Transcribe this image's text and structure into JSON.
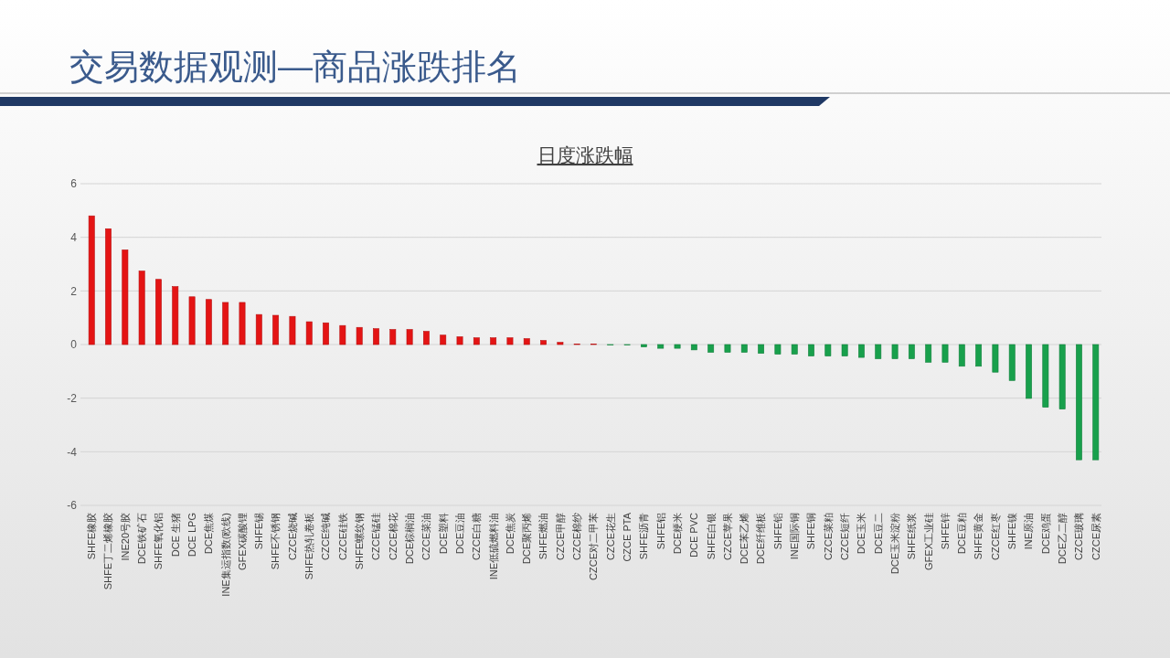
{
  "chart_data": {
    "type": "bar",
    "title": "交易数据观测—商品涨跌排名",
    "subtitle": "日度涨跌幅",
    "categories": [
      "SHFE橡胶",
      "SHFE丁二烯橡胶",
      "INE20号胶",
      "DCE铁矿石",
      "SHFE氧化铝",
      "DCE 生猪",
      "DCE LPG",
      "DCE焦煤",
      "INE集运指数(欧线)",
      "GFEX碳酸锂",
      "SHFE锡",
      "SHFE不锈钢",
      "CZCE烧碱",
      "SHFE热轧卷板",
      "CZCE纯碱",
      "CZCE硅铁",
      "SHFE螺纹钢",
      "CZCE锰硅",
      "CZCE棉花",
      "DCE棕榈油",
      "CZCE菜油",
      "DCE塑料",
      "DCE豆油",
      "CZCE白糖",
      "INE低硫燃料油",
      "DCE焦炭",
      "DCE聚丙烯",
      "SHFE燃油",
      "CZCE甲醇",
      "CZCE棉纱",
      "CZCE对二甲苯",
      "CZCE花生",
      "CZCE PTA",
      "SHFE沥青",
      "SHFE铝",
      "DCE粳米",
      "DCE PVC",
      "SHFE白银",
      "CZCE苹果",
      "DCE苯乙烯",
      "DCE纤维板",
      "SHFE铅",
      "INE国际铜",
      "SHFE铜",
      "CZCE菜粕",
      "CZCE短纤",
      "DCE玉米",
      "DCE豆二",
      "DCE玉米淀粉",
      "SHFE纸浆",
      "GFEX工业硅",
      "SHFE锌",
      "DCE豆粕",
      "SHFE黄金",
      "CZCE红枣",
      "SHFE镍",
      "INE原油",
      "DCE鸡蛋",
      "DCE乙二醇",
      "CZCE玻璃",
      "CZCE尿素"
    ],
    "values": [
      4.8,
      4.32,
      3.53,
      2.74,
      2.43,
      2.16,
      1.78,
      1.68,
      1.57,
      1.57,
      1.12,
      1.09,
      1.05,
      0.85,
      0.81,
      0.71,
      0.64,
      0.59,
      0.56,
      0.56,
      0.49,
      0.35,
      0.29,
      0.25,
      0.25,
      0.25,
      0.22,
      0.15,
      0.08,
      0.02,
      0.02,
      -0.02,
      -0.02,
      -0.09,
      -0.14,
      -0.14,
      -0.2,
      -0.29,
      -0.29,
      -0.29,
      -0.33,
      -0.36,
      -0.36,
      -0.43,
      -0.43,
      -0.43,
      -0.48,
      -0.53,
      -0.53,
      -0.53,
      -0.66,
      -0.66,
      -0.81,
      -0.81,
      -1.03,
      -1.34,
      -2.01,
      -2.34,
      -2.41,
      -4.3,
      -4.3
    ],
    "colors": [
      "#e41414",
      "#e41414",
      "#e41414",
      "#e41414",
      "#e41414",
      "#e41414",
      "#e41414",
      "#e41414",
      "#e41414",
      "#e41414",
      "#e41414",
      "#e41414",
      "#e41414",
      "#e41414",
      "#e41414",
      "#e41414",
      "#e41414",
      "#e41414",
      "#e41414",
      "#e41414",
      "#e41414",
      "#e41414",
      "#e41414",
      "#e41414",
      "#e41414",
      "#e41414",
      "#e41414",
      "#e41414",
      "#e41414",
      "#e41414",
      "#e41414",
      "#18a04c",
      "#18a04c",
      "#18a04c",
      "#18a04c",
      "#18a04c",
      "#18a04c",
      "#18a04c",
      "#18a04c",
      "#18a04c",
      "#18a04c",
      "#18a04c",
      "#18a04c",
      "#18a04c",
      "#18a04c",
      "#18a04c",
      "#18a04c",
      "#18a04c",
      "#18a04c",
      "#18a04c",
      "#18a04c",
      "#18a04c",
      "#18a04c",
      "#18a04c",
      "#18a04c",
      "#18a04c",
      "#18a04c",
      "#18a04c",
      "#18a04c",
      "#18a04c",
      "#18a04c"
    ],
    "ylim": [
      -6,
      6
    ],
    "yticks": [
      -6,
      -4,
      -2,
      0,
      2,
      4,
      6
    ],
    "grid": "y"
  }
}
